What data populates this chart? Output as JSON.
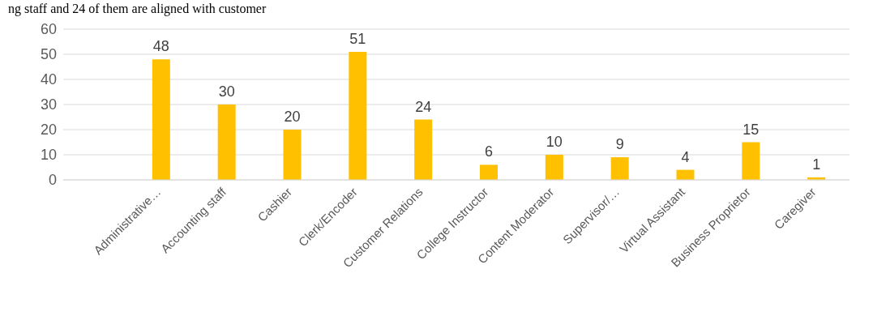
{
  "chart_data": {
    "type": "bar",
    "annotations": [
      "ng staff and 24 of them are aligned with customer"
    ],
    "categories": [
      null,
      "Administrative…",
      "Accounting staff",
      "Cashier",
      "Clerk/Encoder",
      "Customer Relations",
      "College Instructor",
      "Content Moderator",
      "Supervisor/…",
      "Virtual Assistant",
      "Business Proprietor",
      "Caregiver"
    ],
    "values": [
      null,
      48,
      30,
      20,
      51,
      24,
      6,
      10,
      9,
      4,
      15,
      1
    ],
    "color": "#ffc000",
    "ylim": [
      0,
      60
    ],
    "yticks": [
      0,
      10,
      20,
      30,
      40,
      50,
      60
    ],
    "grid": "y",
    "data_labels": true
  }
}
